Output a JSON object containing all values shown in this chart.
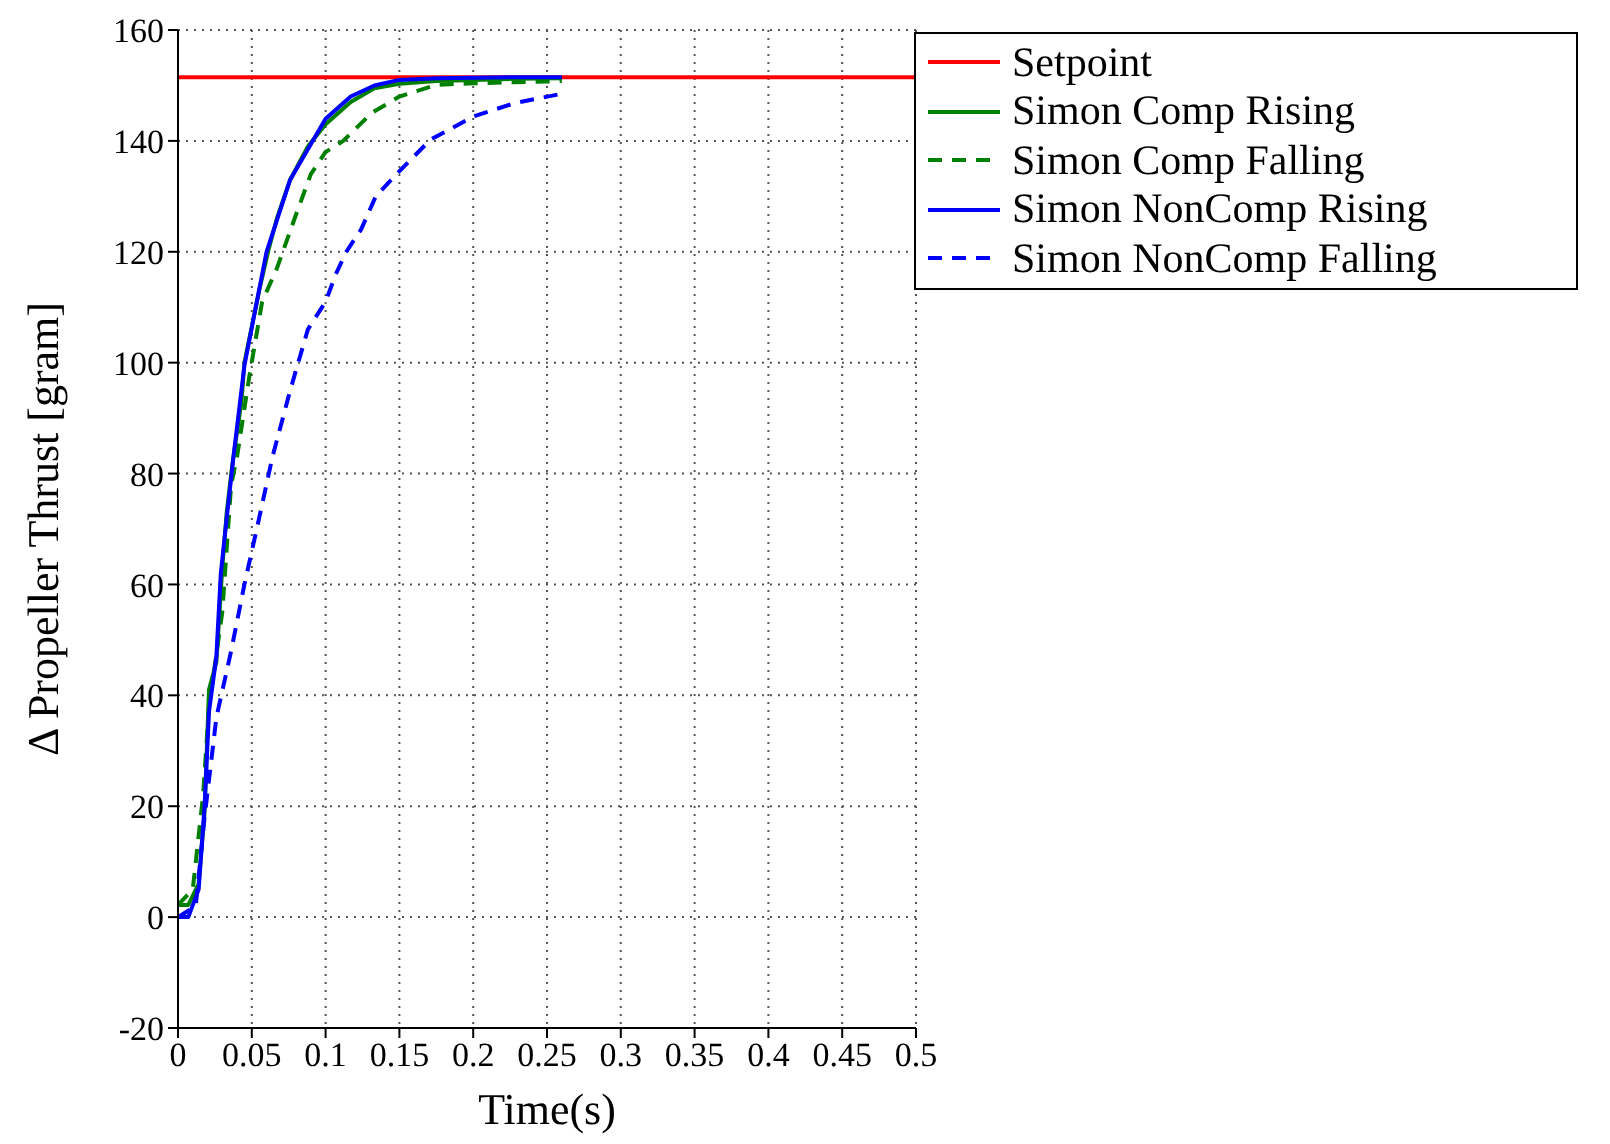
{
  "chart_data": {
    "type": "line",
    "xlabel": "Time(s)",
    "ylabel": "Δ Propeller Thrust [gram]",
    "xlim": [
      0,
      0.5
    ],
    "ylim": [
      -20,
      160
    ],
    "xticks": [
      0,
      0.05,
      0.1,
      0.15,
      0.2,
      0.25,
      0.3,
      0.35,
      0.4,
      0.45,
      0.5
    ],
    "yticks": [
      -20,
      0,
      20,
      40,
      60,
      80,
      100,
      120,
      140,
      160
    ],
    "grid": true,
    "legend": "top right",
    "marker": "none",
    "series": [
      {
        "name": "Setpoint",
        "color": "#ff0000",
        "line_style": "solid",
        "x": [
          0,
          0.5
        ],
        "values": [
          151.5,
          151.5
        ]
      },
      {
        "name": "Simon Comp Rising",
        "color": "#008000",
        "line_style": "solid",
        "x": [
          0,
          0.007,
          0.014,
          0.018,
          0.021,
          0.026,
          0.03,
          0.033,
          0.037,
          0.043,
          0.045,
          0.055,
          0.061,
          0.067,
          0.076,
          0.088,
          0.1,
          0.117,
          0.133,
          0.15,
          0.175,
          0.2,
          0.23,
          0.26
        ],
        "values": [
          2.2,
          2.2,
          6,
          19,
          41,
          46,
          63,
          73,
          82,
          93,
          100,
          113,
          120,
          126,
          133,
          139,
          143,
          147,
          149.5,
          150.3,
          150.8,
          151,
          151.2,
          151.3
        ]
      },
      {
        "name": "Simon Comp Falling",
        "color": "#008000",
        "line_style": "dashed",
        "x": [
          0,
          0.01,
          0.017,
          0.021,
          0.03,
          0.036,
          0.04,
          0.048,
          0.057,
          0.067,
          0.079,
          0.09,
          0.1,
          0.112,
          0.131,
          0.15,
          0.175,
          0.2,
          0.25,
          0.26
        ],
        "values": [
          2.2,
          5,
          22,
          38,
          55,
          78,
          83,
          97,
          111,
          117,
          126,
          134,
          138,
          140,
          145,
          148,
          150.1,
          150.4,
          150.7,
          150.8
        ]
      },
      {
        "name": "Simon NonComp Rising",
        "color": "#0000ff",
        "line_style": "solid",
        "x": [
          0,
          0.007,
          0.014,
          0.018,
          0.021,
          0.026,
          0.029,
          0.033,
          0.038,
          0.045,
          0.06,
          0.076,
          0.1,
          0.117,
          0.133,
          0.15,
          0.175,
          0.2,
          0.23,
          0.26
        ],
        "values": [
          0,
          0,
          5,
          20,
          37,
          47,
          62,
          72,
          84,
          99.5,
          120,
          133,
          144,
          148,
          150,
          151,
          151.3,
          151.4,
          151.5,
          151.5
        ]
      },
      {
        "name": "Simon NonComp Falling",
        "color": "#0000ff",
        "line_style": "dashed",
        "x": [
          0,
          0.012,
          0.018,
          0.026,
          0.036,
          0.045,
          0.055,
          0.064,
          0.076,
          0.088,
          0.1,
          0.107,
          0.114,
          0.124,
          0.134,
          0.148,
          0.171,
          0.2,
          0.228,
          0.262
        ],
        "values": [
          0,
          2,
          18,
          36,
          48,
          60,
          72,
          83,
          95,
          106,
          111,
          116,
          120,
          124,
          130,
          134,
          140.2,
          144.4,
          146.8,
          148.6
        ]
      }
    ]
  }
}
